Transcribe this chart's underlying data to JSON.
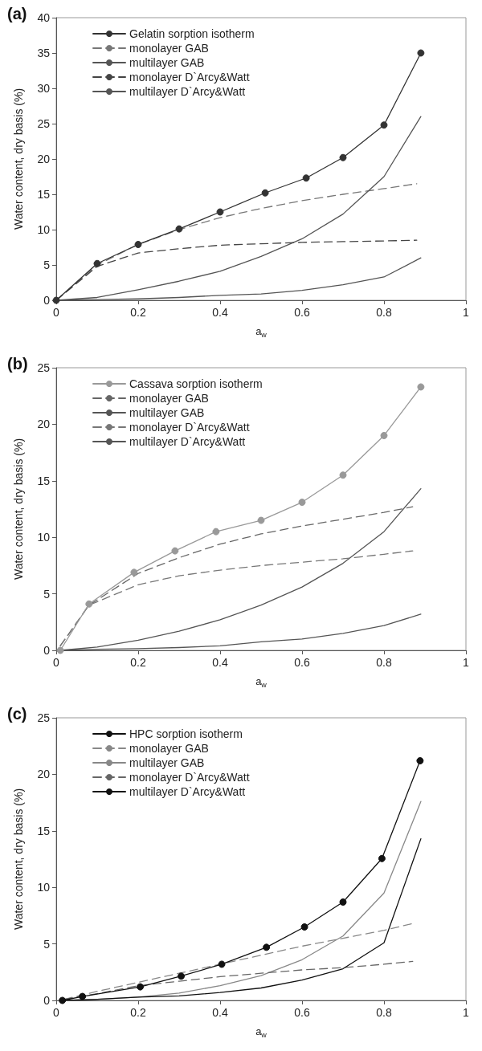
{
  "chart_data": [
    {
      "type": "line",
      "title": "(a)",
      "xlabel": "a$_{w}$",
      "ylabel": "Water content, dry basis (%)",
      "xlim": [
        0,
        1
      ],
      "xticks": [
        0,
        0.2,
        0.4,
        0.6,
        0.8,
        1
      ],
      "ylim": [
        0,
        40
      ],
      "yticks": [
        0,
        5,
        10,
        15,
        20,
        25,
        30,
        35,
        40
      ],
      "grid": false,
      "legend": "top left",
      "series": [
        {
          "name": "Gelatin sorption isotherm",
          "color": "#333333",
          "marker": "circle",
          "line_style": "solid",
          "x": [
            0,
            0.1,
            0.2,
            0.3,
            0.4,
            0.51,
            0.61,
            0.7,
            0.8,
            0.89
          ],
          "values": [
            0,
            5.2,
            7.9,
            10.1,
            12.5,
            15.2,
            17.3,
            20.2,
            24.8,
            35
          ]
        },
        {
          "name": "monolayer GAB",
          "color": "#777777",
          "marker": "none",
          "line_style": "dashed",
          "x": [
            0,
            0.1,
            0.2,
            0.3,
            0.4,
            0.5,
            0.6,
            0.7,
            0.8,
            0.88
          ],
          "values": [
            0,
            5,
            7.9,
            10,
            11.7,
            13,
            14.1,
            15,
            15.8,
            16.5
          ]
        },
        {
          "name": "multilayer GAB",
          "color": "#555555",
          "marker": "none",
          "line_style": "solid",
          "x": [
            0,
            0.1,
            0.2,
            0.3,
            0.4,
            0.5,
            0.6,
            0.7,
            0.8,
            0.89
          ],
          "values": [
            0,
            0.4,
            1.5,
            2.7,
            4.1,
            6.2,
            8.7,
            12.2,
            17.5,
            26
          ]
        },
        {
          "name": "monolayer D`Arcy&Watt",
          "color": "#444444",
          "marker": "none",
          "line_style": "dashed",
          "x": [
            0,
            0.1,
            0.2,
            0.3,
            0.4,
            0.5,
            0.6,
            0.7,
            0.8,
            0.88
          ],
          "values": [
            0,
            4.8,
            6.7,
            7.3,
            7.8,
            8,
            8.2,
            8.3,
            8.4,
            8.5
          ]
        },
        {
          "name": "multilayer D`Arcy&Watt",
          "color": "#555555",
          "marker": "none",
          "line_style": "solid",
          "x": [
            0,
            0.1,
            0.2,
            0.3,
            0.4,
            0.5,
            0.6,
            0.7,
            0.8,
            0.89
          ],
          "values": [
            0,
            0.1,
            0.2,
            0.4,
            0.7,
            0.9,
            1.4,
            2.2,
            3.3,
            6
          ]
        }
      ]
    },
    {
      "type": "line",
      "title": "(b)",
      "xlabel": "a$_{w}$",
      "ylabel": "Water content, dry basis (%)",
      "xlim": [
        0,
        1
      ],
      "xticks": [
        0,
        0.2,
        0.4,
        0.6,
        0.8,
        1
      ],
      "ylim": [
        0,
        25
      ],
      "yticks": [
        0,
        5,
        10,
        15,
        20,
        25
      ],
      "grid": false,
      "legend": "top left",
      "series": [
        {
          "name": "Cassava sorption isotherm",
          "color": "#999999",
          "marker": "circle",
          "line_style": "solid",
          "x": [
            0.01,
            0.08,
            0.19,
            0.29,
            0.39,
            0.5,
            0.6,
            0.7,
            0.8,
            0.89
          ],
          "values": [
            0,
            4.1,
            6.9,
            8.8,
            10.5,
            11.5,
            13.1,
            15.5,
            19,
            23.3
          ]
        },
        {
          "name": "monolayer GAB",
          "color": "#666666",
          "marker": "none",
          "line_style": "dashed",
          "x": [
            0.01,
            0.08,
            0.2,
            0.3,
            0.4,
            0.5,
            0.6,
            0.7,
            0.8,
            0.87
          ],
          "values": [
            0.4,
            4,
            6.8,
            8.2,
            9.4,
            10.3,
            11,
            11.6,
            12.2,
            12.7
          ]
        },
        {
          "name": "multilayer GAB",
          "color": "#555555",
          "marker": "none",
          "line_style": "solid",
          "x": [
            0.01,
            0.1,
            0.2,
            0.3,
            0.4,
            0.5,
            0.6,
            0.7,
            0.8,
            0.89
          ],
          "values": [
            0,
            0.3,
            0.9,
            1.7,
            2.7,
            4,
            5.6,
            7.7,
            10.5,
            14.3
          ]
        },
        {
          "name": "monolayer D`Arcy&Watt",
          "color": "#777777",
          "marker": "none",
          "line_style": "dashed",
          "x": [
            0.01,
            0.08,
            0.2,
            0.3,
            0.4,
            0.5,
            0.6,
            0.7,
            0.8,
            0.87
          ],
          "values": [
            0.4,
            4,
            5.8,
            6.6,
            7.1,
            7.5,
            7.8,
            8.1,
            8.5,
            8.8
          ]
        },
        {
          "name": "multilayer D`Arcy&Watt",
          "color": "#555555",
          "marker": "none",
          "line_style": "solid",
          "x": [
            0.01,
            0.1,
            0.2,
            0.3,
            0.4,
            0.5,
            0.6,
            0.7,
            0.8,
            0.89
          ],
          "values": [
            0,
            0.1,
            0.15,
            0.25,
            0.4,
            0.75,
            1,
            1.5,
            2.2,
            3.2
          ]
        }
      ]
    },
    {
      "type": "line",
      "title": "(c)",
      "xlabel": "a$_{w}$",
      "ylabel": "Water content, dry basis (%)",
      "xlim": [
        0,
        1
      ],
      "xticks": [
        0,
        0.2,
        0.4,
        0.6,
        0.8,
        1
      ],
      "ylim": [
        0,
        25
      ],
      "yticks": [
        0,
        5,
        10,
        15,
        20,
        25
      ],
      "grid": false,
      "legend": "top left",
      "series": [
        {
          "name": "HPC sorption isotherm",
          "color": "#111111",
          "marker": "circle",
          "line_style": "solid",
          "x": [
            0.015,
            0.064,
            0.205,
            0.305,
            0.404,
            0.513,
            0.606,
            0.7,
            0.795,
            0.888
          ],
          "values": [
            0,
            0.35,
            1.2,
            2.15,
            3.2,
            4.7,
            6.5,
            8.7,
            12.55,
            21.2
          ]
        },
        {
          "name": "monolayer GAB",
          "color": "#888888",
          "marker": "none",
          "line_style": "dashed",
          "x": [
            0.02,
            0.1,
            0.2,
            0.3,
            0.4,
            0.5,
            0.6,
            0.7,
            0.8,
            0.87
          ],
          "values": [
            0.1,
            0.8,
            1.6,
            2.4,
            3.2,
            4,
            4.8,
            5.5,
            6.2,
            6.8
          ]
        },
        {
          "name": "multilayer GAB",
          "color": "#888888",
          "marker": "none",
          "line_style": "solid",
          "x": [
            0.02,
            0.1,
            0.2,
            0.3,
            0.4,
            0.5,
            0.6,
            0.7,
            0.8,
            0.89
          ],
          "values": [
            0,
            0.1,
            0.3,
            0.65,
            1.3,
            2.2,
            3.6,
            5.7,
            9.5,
            17.6
          ]
        },
        {
          "name": "monolayer D`Arcy&Watt",
          "color": "#666666",
          "marker": "none",
          "line_style": "dashed",
          "x": [
            0.02,
            0.1,
            0.2,
            0.3,
            0.4,
            0.5,
            0.6,
            0.7,
            0.8,
            0.87
          ],
          "values": [
            0.1,
            0.6,
            1.3,
            1.7,
            2.1,
            2.4,
            2.7,
            2.9,
            3.2,
            3.45
          ]
        },
        {
          "name": "multilayer D`Arcy&Watt",
          "color": "#111111",
          "marker": "none",
          "line_style": "solid",
          "x": [
            0.02,
            0.1,
            0.2,
            0.3,
            0.4,
            0.5,
            0.6,
            0.7,
            0.8,
            0.89
          ],
          "values": [
            0,
            0.1,
            0.3,
            0.4,
            0.7,
            1.1,
            1.8,
            2.8,
            5.1,
            14.3
          ]
        }
      ]
    }
  ]
}
